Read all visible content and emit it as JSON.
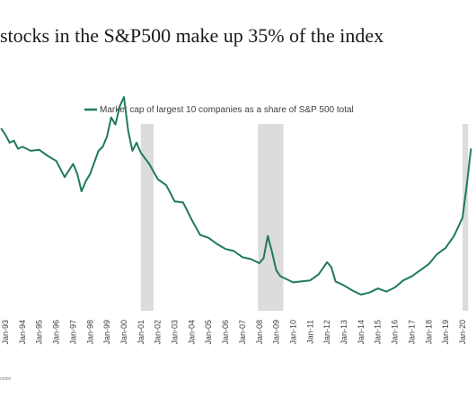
{
  "title": "stocks in the S&P500 make up 35% of the index",
  "source_note": "omist",
  "chart_data": {
    "type": "line",
    "series": [
      {
        "name": "Market cap of largest 10 companies as a share of S&P 500 total",
        "color": "#1f7a5c",
        "x": [
          1992.75,
          1993.0,
          1993.25,
          1993.5,
          1993.75,
          1994.0,
          1994.5,
          1995.0,
          1995.5,
          1996.0,
          1996.5,
          1997.0,
          1997.25,
          1997.5,
          1997.75,
          1998.0,
          1998.5,
          1998.75,
          1999.0,
          1999.25,
          1999.5,
          1999.75,
          2000.0,
          2000.25,
          2000.5,
          2000.75,
          2001.0,
          2001.5,
          2002.0,
          2002.5,
          2003.0,
          2003.5,
          2004.0,
          2004.5,
          2005.0,
          2005.5,
          2006.0,
          2006.5,
          2007.0,
          2007.5,
          2008.0,
          2008.25,
          2008.5,
          2008.75,
          2009.0,
          2009.25,
          2009.5,
          2010.0,
          2010.5,
          2011.0,
          2011.5,
          2012.0,
          2012.25,
          2012.5,
          2013.0,
          2013.5,
          2014.0,
          2014.5,
          2015.0,
          2015.5,
          2016.0,
          2016.5,
          2017.0,
          2017.5,
          2018.0,
          2018.5,
          2019.0,
          2019.5,
          2020.0,
          2020.25,
          2020.5
        ],
        "values": [
          28.0,
          27.4,
          26.6,
          26.8,
          26.0,
          26.2,
          25.8,
          25.9,
          25.3,
          24.8,
          23.2,
          24.5,
          23.5,
          21.8,
          22.8,
          23.5,
          25.8,
          26.2,
          27.2,
          29.1,
          28.4,
          30.2,
          31.1,
          27.8,
          25.8,
          26.6,
          25.6,
          24.5,
          23.0,
          22.4,
          20.8,
          20.7,
          19.0,
          17.5,
          17.2,
          16.6,
          16.1,
          15.9,
          15.3,
          15.1,
          14.7,
          15.2,
          17.4,
          15.8,
          14.0,
          13.4,
          13.2,
          12.8,
          12.9,
          13.0,
          13.6,
          14.8,
          14.3,
          12.9,
          12.5,
          12.0,
          11.6,
          11.8,
          12.2,
          11.9,
          12.3,
          13.0,
          13.4,
          14.0,
          14.6,
          15.6,
          16.2,
          17.4,
          19.2,
          22.4,
          26.0
        ]
      }
    ],
    "x_ticks": [
      "Jan-93",
      "Jan-94",
      "Jan-95",
      "Jan-96",
      "Jan-97",
      "Jan-98",
      "Jan-99",
      "Jan-00",
      "Jan-01",
      "Jan-02",
      "Jan-03",
      "Jan-04",
      "Jan-05",
      "Jan-06",
      "Jan-07",
      "Jan-08",
      "Jan-09",
      "Jan-10",
      "Jan-11",
      "Jan-12",
      "Jan-13",
      "Jan-14",
      "Jan-15",
      "Jan-16",
      "Jan-17",
      "Jan-18",
      "Jan-19",
      "Jan-20"
    ],
    "x_tick_values": [
      1993,
      1994,
      1995,
      1996,
      1997,
      1998,
      1999,
      2000,
      2001,
      2002,
      2003,
      2004,
      2005,
      2006,
      2007,
      2008,
      2009,
      2010,
      2011,
      2012,
      2013,
      2014,
      2015,
      2016,
      2017,
      2018,
      2019,
      2020
    ],
    "recession_shading": [
      [
        2001.0,
        2001.75
      ],
      [
        2007.92,
        2009.42
      ],
      [
        2020.0,
        2020.33
      ]
    ],
    "shading_color": "#dcdcdc",
    "ylim": [
      10,
      32
    ],
    "grid": false,
    "legend_position": "top-center"
  }
}
